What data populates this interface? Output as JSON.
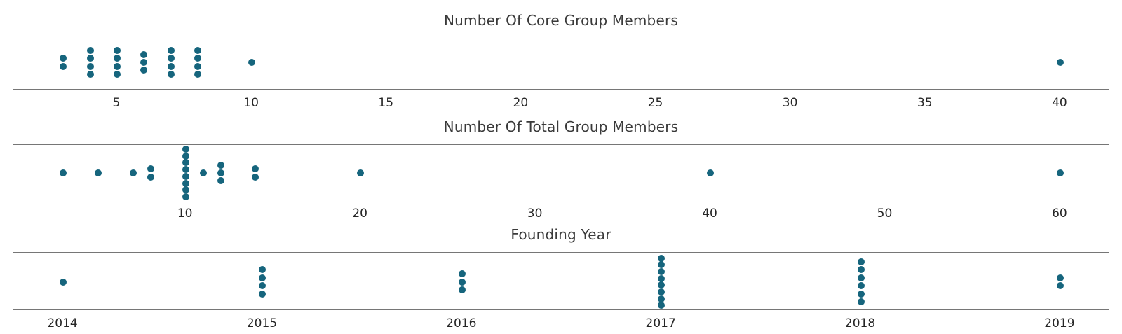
{
  "page": {
    "background": "#ffffff"
  },
  "style": {
    "dot_color": "#16657d",
    "panel_border_color": "#767676",
    "tick_text_color": "#262626",
    "title_text_color": "#3a3a3a"
  },
  "chart_data": [
    {
      "type": "scatter",
      "variant": "strip-dotplot",
      "title": "Number Of Core Group Members",
      "xlabel": "",
      "ylabel": "",
      "grid": false,
      "legend": "none",
      "xlim": [
        1.15,
        41.85
      ],
      "x_tick_labels": [
        "5",
        "10",
        "15",
        "20",
        "25",
        "30",
        "35",
        "40"
      ],
      "x_tick_values": [
        5,
        10,
        15,
        20,
        25,
        30,
        35,
        40
      ],
      "columns": [
        {
          "x": 3,
          "count": 2
        },
        {
          "x": 4,
          "count": 4
        },
        {
          "x": 5,
          "count": 4
        },
        {
          "x": 6,
          "count": 3
        },
        {
          "x": 7,
          "count": 4
        },
        {
          "x": 8,
          "count": 4
        },
        {
          "x": 10,
          "count": 1
        },
        {
          "x": 40,
          "count": 1
        }
      ]
    },
    {
      "type": "scatter",
      "variant": "strip-dotplot",
      "title": "Number Of Total Group Members",
      "xlabel": "",
      "ylabel": "",
      "grid": false,
      "legend": "none",
      "xlim": [
        0.15,
        62.85
      ],
      "x_tick_labels": [
        "10",
        "20",
        "30",
        "40",
        "50",
        "60"
      ],
      "x_tick_values": [
        10,
        20,
        30,
        40,
        50,
        60
      ],
      "columns": [
        {
          "x": 3,
          "count": 1
        },
        {
          "x": 5,
          "count": 1
        },
        {
          "x": 7,
          "count": 1
        },
        {
          "x": 8,
          "count": 2
        },
        {
          "x": 10,
          "count": 8
        },
        {
          "x": 11,
          "count": 1
        },
        {
          "x": 12,
          "count": 3
        },
        {
          "x": 14,
          "count": 2
        },
        {
          "x": 20,
          "count": 1
        },
        {
          "x": 40,
          "count": 1
        },
        {
          "x": 60,
          "count": 1
        }
      ]
    },
    {
      "type": "scatter",
      "variant": "strip-dotplot",
      "title": "Founding Year",
      "xlabel": "",
      "ylabel": "",
      "grid": false,
      "legend": "none",
      "xlim": [
        2013.75,
        2019.25
      ],
      "x_tick_labels": [
        "2014",
        "2015",
        "2016",
        "2017",
        "2018",
        "2019"
      ],
      "x_tick_values": [
        2014,
        2015,
        2016,
        2017,
        2018,
        2019
      ],
      "columns": [
        {
          "x": 2014,
          "count": 1
        },
        {
          "x": 2015,
          "count": 4
        },
        {
          "x": 2016,
          "count": 3
        },
        {
          "x": 2017,
          "count": 8
        },
        {
          "x": 2018,
          "count": 6
        },
        {
          "x": 2019,
          "count": 2
        }
      ]
    }
  ]
}
